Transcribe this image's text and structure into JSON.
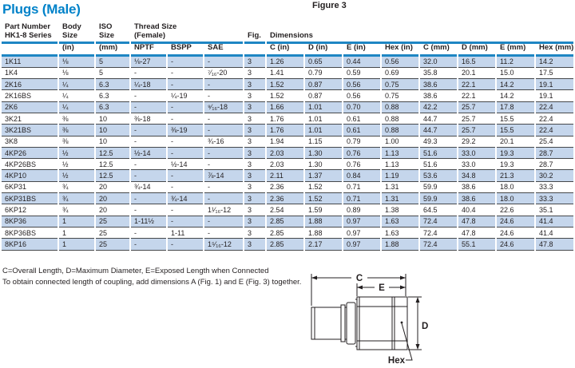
{
  "title": "Plugs (Male)",
  "figure_label": "Figure 3",
  "colors": {
    "title_blue": "#0082C9",
    "header_line_blue": "#1E86C3",
    "row_stripe_blue": "#C5D6EC",
    "row_separator_gray": "#46484B",
    "text": "#231F20"
  },
  "table": {
    "header": {
      "part_number": "Part Number\nHK1-8 Series",
      "body_size": "Body\nSize",
      "iso_size": "ISO\nSize",
      "thread_size": "Thread Size\n(Female)",
      "fig": "Fig.",
      "dimensions": "Dimensions"
    },
    "subheader": [
      "",
      "(in)",
      "(mm)",
      "NPTF",
      "BSPP",
      "SAE",
      "",
      "C (in)",
      "D (in)",
      "E (in)",
      "Hex (in)",
      "C (mm)",
      "D (mm)",
      "E (mm)",
      "Hex (mm)"
    ],
    "rows": [
      [
        "1K11",
        "⅛",
        "5",
        "⅛-27",
        "-",
        "-",
        "3",
        "1.26",
        "0.65",
        "0.44",
        "0.56",
        "32.0",
        "16.5",
        "11.2",
        "14.2"
      ],
      [
        "1K4",
        "⅛",
        "5",
        "-",
        "-",
        "⁷⁄₁₆-20",
        "3",
        "1.41",
        "0.79",
        "0.59",
        "0.69",
        "35.8",
        "20.1",
        "15.0",
        "17.5"
      ],
      [
        "2K16",
        "¼",
        "6.3",
        "¼-18",
        "-",
        "-",
        "3",
        "1.52",
        "0.87",
        "0.56",
        "0.75",
        "38.6",
        "22.1",
        "14.2",
        "19.1"
      ],
      [
        "2K16BS",
        "¼",
        "6.3",
        "-",
        "¼-19",
        "-",
        "3",
        "1.52",
        "0.87",
        "0.56",
        "0.75",
        "38.6",
        "22.1",
        "14.2",
        "19.1"
      ],
      [
        "2K6",
        "¼",
        "6.3",
        "-",
        "-",
        "⁹⁄₁₆-18",
        "3",
        "1.66",
        "1.01",
        "0.70",
        "0.88",
        "42.2",
        "25.7",
        "17.8",
        "22.4"
      ],
      [
        "3K21",
        "⅜",
        "10",
        "⅜-18",
        "-",
        "-",
        "3",
        "1.76",
        "1.01",
        "0.61",
        "0.88",
        "44.7",
        "25.7",
        "15.5",
        "22.4"
      ],
      [
        "3K21BS",
        "⅜",
        "10",
        "-",
        "⅜-19",
        "-",
        "3",
        "1.76",
        "1.01",
        "0.61",
        "0.88",
        "44.7",
        "25.7",
        "15.5",
        "22.4"
      ],
      [
        "3K8",
        "⅜",
        "10",
        "-",
        "-",
        "¾-16",
        "3",
        "1.94",
        "1.15",
        "0.79",
        "1.00",
        "49.3",
        "29.2",
        "20.1",
        "25.4"
      ],
      [
        "4KP26",
        "½",
        "12.5",
        "½-14",
        "-",
        "-",
        "3",
        "2.03",
        "1.30",
        "0.76",
        "1.13",
        "51.6",
        "33.0",
        "19.3",
        "28.7"
      ],
      [
        "4KP26BS",
        "½",
        "12.5",
        "-",
        "½-14",
        "-",
        "3",
        "2.03",
        "1.30",
        "0.76",
        "1.13",
        "51.6",
        "33.0",
        "19.3",
        "28.7"
      ],
      [
        "4KP10",
        "½",
        "12.5",
        "-",
        "-",
        "⅞-14",
        "3",
        "2.11",
        "1.37",
        "0.84",
        "1.19",
        "53.6",
        "34.8",
        "21.3",
        "30.2"
      ],
      [
        "6KP31",
        "¾",
        "20",
        "¾-14",
        "-",
        "-",
        "3",
        "2.36",
        "1.52",
        "0.71",
        "1.31",
        "59.9",
        "38.6",
        "18.0",
        "33.3"
      ],
      [
        "6KP31BS",
        "¾",
        "20",
        "-",
        "¾-14",
        "-",
        "3",
        "2.36",
        "1.52",
        "0.71",
        "1.31",
        "59.9",
        "38.6",
        "18.0",
        "33.3"
      ],
      [
        "6KP12",
        "¾",
        "20",
        "-",
        "-",
        "1¹⁄₁₆-12",
        "3",
        "2.54",
        "1.59",
        "0.89",
        "1.38",
        "64.5",
        "40.4",
        "22.6",
        "35.1"
      ],
      [
        "8KP36",
        "1",
        "25",
        "1-11½",
        "-",
        "-",
        "3",
        "2.85",
        "1.88",
        "0.97",
        "1.63",
        "72.4",
        "47.8",
        "24.6",
        "41.4"
      ],
      [
        "8KP36BS",
        "1",
        "25",
        "-",
        "1-11",
        "-",
        "3",
        "2.85",
        "1.88",
        "0.97",
        "1.63",
        "72.4",
        "47.8",
        "24.6",
        "41.4"
      ],
      [
        "8KP16",
        "1",
        "25",
        "-",
        "-",
        "1⁵⁄₁₆-12",
        "3",
        "2.85",
        "2.17",
        "0.97",
        "1.88",
        "72.4",
        "55.1",
        "24.6",
        "47.8"
      ]
    ]
  },
  "footnotes": [
    "C=Overall Length, D=Maximum Diameter, E=Exposed Length when Connected",
    "To obtain connected length of coupling, add dimensions A (Fig. 1) and E (Fig. 3) together."
  ],
  "diagram": {
    "labels": {
      "c": "C",
      "e": "E",
      "d": "D",
      "hex": "Hex"
    }
  }
}
